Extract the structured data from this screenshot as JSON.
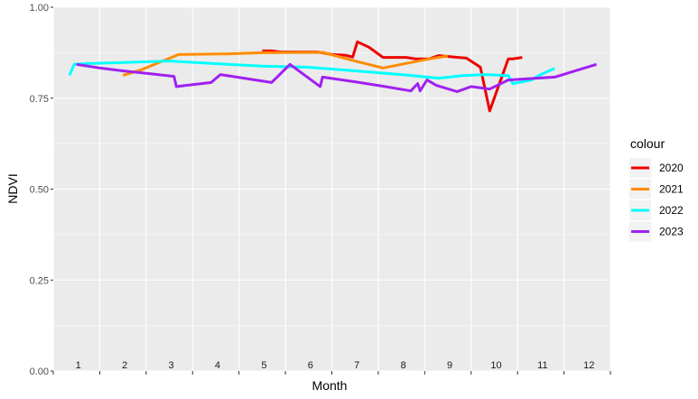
{
  "chart_data": {
    "type": "line",
    "xlabel": "Month",
    "ylabel": "NDVI",
    "ylim": [
      0,
      1
    ],
    "y_ticks": [
      "0.00",
      "0.25",
      "0.50",
      "0.75",
      "1.00"
    ],
    "x_ticks": [
      "1",
      "2",
      "3",
      "4",
      "5",
      "6",
      "7",
      "8",
      "9",
      "10",
      "11",
      "12"
    ],
    "grid": true,
    "legend_position": "right",
    "legend_title": "colour",
    "series": [
      {
        "name": "2020",
        "color": "#ee0000",
        "points": [
          [
            5.0,
            0.88
          ],
          [
            5.2,
            0.88
          ],
          [
            5.4,
            0.877
          ],
          [
            6.2,
            0.877
          ],
          [
            6.5,
            0.87
          ],
          [
            6.8,
            0.868
          ],
          [
            6.95,
            0.863
          ],
          [
            7.05,
            0.905
          ],
          [
            7.3,
            0.89
          ],
          [
            7.6,
            0.862
          ],
          [
            8.1,
            0.862
          ],
          [
            8.3,
            0.858
          ],
          [
            8.6,
            0.858
          ],
          [
            8.8,
            0.867
          ],
          [
            9.4,
            0.86
          ],
          [
            9.7,
            0.835
          ],
          [
            9.9,
            0.715
          ],
          [
            10.3,
            0.858
          ],
          [
            10.4,
            0.858
          ],
          [
            10.6,
            0.862
          ]
        ]
      },
      {
        "name": "2021",
        "color": "#ff8c00",
        "points": [
          [
            2.0,
            0.813
          ],
          [
            2.4,
            0.828
          ],
          [
            3.2,
            0.87
          ],
          [
            4.3,
            0.872
          ],
          [
            5.0,
            0.875
          ],
          [
            6.3,
            0.876
          ],
          [
            7.0,
            0.852
          ],
          [
            7.6,
            0.833
          ],
          [
            8.6,
            0.858
          ],
          [
            9.0,
            0.866
          ]
        ]
      },
      {
        "name": "2022",
        "color": "#00ffff",
        "points": [
          [
            0.85,
            0.813
          ],
          [
            0.95,
            0.843
          ],
          [
            1.2,
            0.845
          ],
          [
            2.0,
            0.848
          ],
          [
            3.0,
            0.852
          ],
          [
            4.0,
            0.845
          ],
          [
            5.0,
            0.838
          ],
          [
            6.0,
            0.835
          ],
          [
            7.0,
            0.825
          ],
          [
            8.0,
            0.815
          ],
          [
            8.8,
            0.805
          ],
          [
            9.3,
            0.812
          ],
          [
            9.8,
            0.815
          ],
          [
            10.3,
            0.812
          ],
          [
            10.4,
            0.79
          ],
          [
            10.8,
            0.8
          ],
          [
            11.0,
            0.815
          ],
          [
            11.3,
            0.832
          ]
        ]
      },
      {
        "name": "2023",
        "color": "#a020f0",
        "points": [
          [
            1.0,
            0.843
          ],
          [
            1.5,
            0.833
          ],
          [
            2.0,
            0.825
          ],
          [
            2.6,
            0.817
          ],
          [
            3.1,
            0.81
          ],
          [
            3.15,
            0.782
          ],
          [
            3.9,
            0.793
          ],
          [
            4.1,
            0.815
          ],
          [
            5.2,
            0.793
          ],
          [
            5.6,
            0.843
          ],
          [
            6.25,
            0.782
          ],
          [
            6.3,
            0.808
          ],
          [
            7.0,
            0.795
          ],
          [
            7.6,
            0.783
          ],
          [
            8.2,
            0.77
          ],
          [
            8.35,
            0.79
          ],
          [
            8.4,
            0.77
          ],
          [
            8.55,
            0.8
          ],
          [
            8.75,
            0.785
          ],
          [
            9.2,
            0.768
          ],
          [
            9.5,
            0.782
          ],
          [
            9.9,
            0.775
          ],
          [
            10.3,
            0.8
          ],
          [
            11.3,
            0.808
          ],
          [
            12.2,
            0.843
          ]
        ]
      }
    ]
  }
}
